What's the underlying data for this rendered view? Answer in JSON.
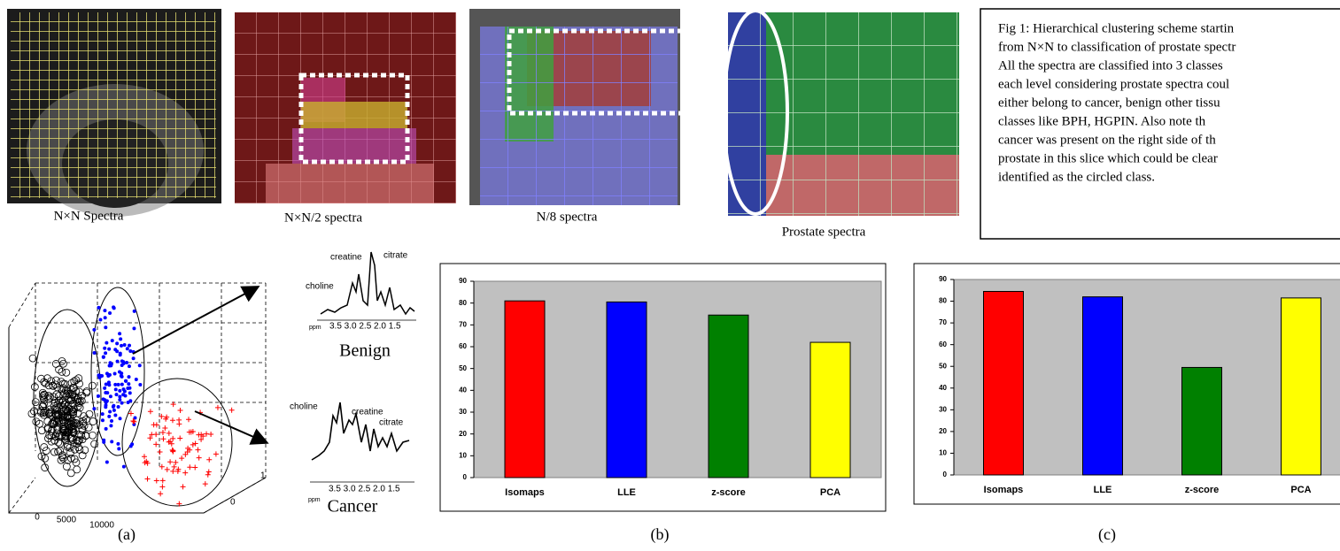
{
  "panels": [
    {
      "caption": "N×N Spectra"
    },
    {
      "caption": "N×N/2 spectra"
    },
    {
      "caption": "N/8 spectra"
    },
    {
      "caption": "Prostate spectra"
    }
  ],
  "figure_caption": {
    "lines": [
      "Fig 1: Hierarchical clustering scheme startin",
      "from N×N to classification of prostate spectr",
      "All the spectra are classified into 3 classes",
      "each level considering prostate spectra coul",
      "either belong to cancer, benign other tissu",
      "classes like BPH, HGPIN. Also note th",
      "cancer was present on the right side of th",
      "prostate in this slice which could be clear",
      "identified as the circled class."
    ]
  },
  "scatter": {
    "x_tick_labels": [
      "0",
      "5000",
      "10000"
    ],
    "depth_tick_labels": [
      "1",
      "0"
    ]
  },
  "spectra": {
    "benign": {
      "peaks": [
        "choline",
        "creatine",
        "citrate"
      ],
      "unit": "ppm",
      "axis": "3.5 3.0 2.5 2.0 1.5",
      "name": "Benign"
    },
    "cancer": {
      "peaks": [
        "choline",
        "creatine",
        "citrate"
      ],
      "unit": "ppm",
      "axis": "3.5 3.0 2.5 2.0 1.5",
      "name": "Cancer"
    }
  },
  "panel_labels": [
    "(a)",
    "(b)",
    "(c)"
  ],
  "chart_data": [
    {
      "type": "bar",
      "categories": [
        "Isomaps",
        "LLE",
        "z-score",
        "PCA"
      ],
      "values": [
        81,
        80.5,
        74.5,
        62
      ],
      "colors": [
        "#ff0000",
        "#0000ff",
        "#008000",
        "#ffff00"
      ],
      "plot_background": "#c0c0c0",
      "ylim": [
        0,
        90
      ],
      "yticks": [
        0,
        10,
        20,
        30,
        40,
        50,
        60,
        70,
        80,
        90
      ]
    },
    {
      "type": "bar",
      "categories": [
        "Isomaps",
        "LLE",
        "z-score",
        "PCA"
      ],
      "values": [
        84.5,
        82,
        49.5,
        81.5
      ],
      "colors": [
        "#ff0000",
        "#0000ff",
        "#008000",
        "#ffff00"
      ],
      "plot_background": "#c0c0c0",
      "ylim": [
        0,
        90
      ],
      "yticks": [
        0,
        10,
        20,
        30,
        40,
        50,
        60,
        70,
        80,
        90
      ]
    }
  ]
}
